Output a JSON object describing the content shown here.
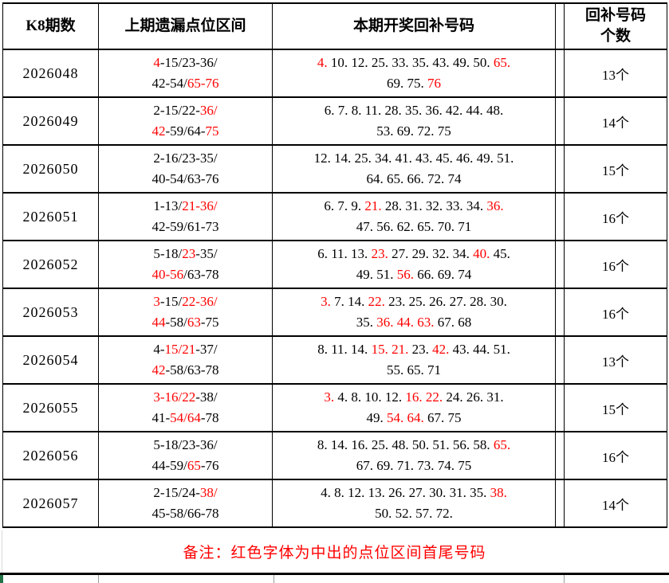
{
  "colors": {
    "red": "#ff0000",
    "border": "#000000",
    "gridline_gray": "#9a9a9a",
    "accent_green": "#217346"
  },
  "footer": {
    "note": "备注：红色字体为中出的点位区间首尾号码"
  },
  "table": {
    "headers": {
      "period": "K8期数",
      "range": "上期遗漏点位区间",
      "numbers": "本期开奖回补号码",
      "count": "回补号码\n个数"
    },
    "rows": [
      {
        "period": "2026048",
        "range": [
          [
            {
              "t": "4",
              "red": true
            },
            {
              "t": "-15/23-36/",
              "red": false
            }
          ],
          [
            {
              "t": "42-54/",
              "red": false
            },
            {
              "t": "65-76",
              "red": true
            }
          ]
        ],
        "numbers": [
          [
            {
              "t": "4.",
              "red": true
            },
            {
              "t": " 10. 12. 25. 33. 35. 43. 49. 50. ",
              "red": false
            },
            {
              "t": "65.",
              "red": true
            }
          ],
          [
            {
              "t": "69. 75. ",
              "red": false
            },
            {
              "t": "76",
              "red": true
            }
          ]
        ],
        "count": "13个"
      },
      {
        "period": "2026049",
        "range": [
          [
            {
              "t": "2-15/22-",
              "red": false
            },
            {
              "t": "36/",
              "red": true
            }
          ],
          [
            {
              "t": "42",
              "red": true
            },
            {
              "t": "-59/64-",
              "red": false
            },
            {
              "t": "75",
              "red": true
            }
          ]
        ],
        "numbers": [
          [
            {
              "t": "6. 7. 8. 11. 28. 35. 36. 42. 44. 48.",
              "red": false
            }
          ],
          [
            {
              "t": "53. 69. 72. 75",
              "red": false
            }
          ]
        ],
        "count": "14个"
      },
      {
        "period": "2026050",
        "range": [
          [
            {
              "t": "2-16/23-35/",
              "red": false
            }
          ],
          [
            {
              "t": "40-54/63-76",
              "red": false
            }
          ]
        ],
        "numbers": [
          [
            {
              "t": "12. 14. 25. 34. 41. 43. 45. 46. 49. 51.",
              "red": false
            }
          ],
          [
            {
              "t": "64. 65. 66. 72. 74",
              "red": false
            }
          ]
        ],
        "count": "15个"
      },
      {
        "period": "2026051",
        "range": [
          [
            {
              "t": "1-13/",
              "red": false
            },
            {
              "t": "21-36/",
              "red": true
            }
          ],
          [
            {
              "t": "42-59/61-73",
              "red": false
            }
          ]
        ],
        "numbers": [
          [
            {
              "t": "6. 7. 9. ",
              "red": false
            },
            {
              "t": "21.",
              "red": true
            },
            {
              "t": " 28. 31. 32. 33. 34. ",
              "red": false
            },
            {
              "t": "36.",
              "red": true
            }
          ],
          [
            {
              "t": "47. 56. 62. 65. 70. 71",
              "red": false
            }
          ]
        ],
        "count": "16个"
      },
      {
        "period": "2026052",
        "range": [
          [
            {
              "t": "5-18/",
              "red": false
            },
            {
              "t": "23",
              "red": true
            },
            {
              "t": "-35/",
              "red": false
            }
          ],
          [
            {
              "t": "40-56",
              "red": true
            },
            {
              "t": "/63-78",
              "red": false
            }
          ]
        ],
        "numbers": [
          [
            {
              "t": "6. 11. 13. ",
              "red": false
            },
            {
              "t": "23.",
              "red": true
            },
            {
              "t": " 27. 29. 32. 34. ",
              "red": false
            },
            {
              "t": "40.",
              "red": true
            },
            {
              "t": " 45.",
              "red": false
            }
          ],
          [
            {
              "t": "49. 51. ",
              "red": false
            },
            {
              "t": "56.",
              "red": true
            },
            {
              "t": " 66. 69. 74",
              "red": false
            }
          ]
        ],
        "count": "16个"
      },
      {
        "period": "2026053",
        "range": [
          [
            {
              "t": "3",
              "red": true
            },
            {
              "t": "-15/",
              "red": false
            },
            {
              "t": "22-36/",
              "red": true
            }
          ],
          [
            {
              "t": "44",
              "red": true
            },
            {
              "t": "-58/",
              "red": false
            },
            {
              "t": "63",
              "red": true
            },
            {
              "t": "-75",
              "red": false
            }
          ]
        ],
        "numbers": [
          [
            {
              "t": "3.",
              "red": true
            },
            {
              "t": " 7. 14. ",
              "red": false
            },
            {
              "t": "22.",
              "red": true
            },
            {
              "t": " 23. 25. 26. 27. 28. 30.",
              "red": false
            }
          ],
          [
            {
              "t": "35. ",
              "red": false
            },
            {
              "t": "36. 44. 63.",
              "red": true
            },
            {
              "t": " 67. 68",
              "red": false
            }
          ]
        ],
        "count": "16个"
      },
      {
        "period": "2026054",
        "range": [
          [
            {
              "t": "4-",
              "red": false
            },
            {
              "t": "15/21",
              "red": true
            },
            {
              "t": "-37/",
              "red": false
            }
          ],
          [
            {
              "t": "42",
              "red": true
            },
            {
              "t": "-58/63-78",
              "red": false
            }
          ]
        ],
        "numbers": [
          [
            {
              "t": "8. 11. 14. ",
              "red": false
            },
            {
              "t": "15. 21.",
              "red": true
            },
            {
              "t": " 23. ",
              "red": false
            },
            {
              "t": "42.",
              "red": true
            },
            {
              "t": " 43. 44. 51.",
              "red": false
            }
          ],
          [
            {
              "t": "55. 65. 71",
              "red": false
            }
          ]
        ],
        "count": "13个"
      },
      {
        "period": "2026055",
        "range": [
          [
            {
              "t": "3-16/22",
              "red": true
            },
            {
              "t": "-38/",
              "red": false
            }
          ],
          [
            {
              "t": "41-",
              "red": false
            },
            {
              "t": "54/64",
              "red": true
            },
            {
              "t": "-78",
              "red": false
            }
          ]
        ],
        "numbers": [
          [
            {
              "t": "3.",
              "red": true
            },
            {
              "t": " 4. 8. 10. 12. ",
              "red": false
            },
            {
              "t": "16. 22.",
              "red": true
            },
            {
              "t": " 24. 26. 31.",
              "red": false
            }
          ],
          [
            {
              "t": "49. ",
              "red": false
            },
            {
              "t": "54. 64.",
              "red": true
            },
            {
              "t": " 67. 75",
              "red": false
            }
          ]
        ],
        "count": "15个"
      },
      {
        "period": "2026056",
        "range": [
          [
            {
              "t": "5-18/23-36/",
              "red": false
            }
          ],
          [
            {
              "t": "44-59/",
              "red": false
            },
            {
              "t": "65",
              "red": true
            },
            {
              "t": "-76",
              "red": false
            }
          ]
        ],
        "numbers": [
          [
            {
              "t": "8. 14. 16. 25. 48. 50. 51. 56. 58. ",
              "red": false
            },
            {
              "t": "65.",
              "red": true
            }
          ],
          [
            {
              "t": "67. 69. 71. 73. 74. 75",
              "red": false
            }
          ]
        ],
        "count": "16个"
      },
      {
        "period": "2026057",
        "range": [
          [
            {
              "t": "2-15/24-",
              "red": false
            },
            {
              "t": "38/",
              "red": true
            }
          ],
          [
            {
              "t": "45-58/66-78",
              "red": false
            }
          ]
        ],
        "numbers": [
          [
            {
              "t": "4. 8. 12. 13. 26. 27. 30. 31. 35. ",
              "red": false
            },
            {
              "t": "38.",
              "red": true
            }
          ],
          [
            {
              "t": "50. 52. 57. 72.",
              "red": false
            }
          ]
        ],
        "count": "14个"
      }
    ]
  }
}
